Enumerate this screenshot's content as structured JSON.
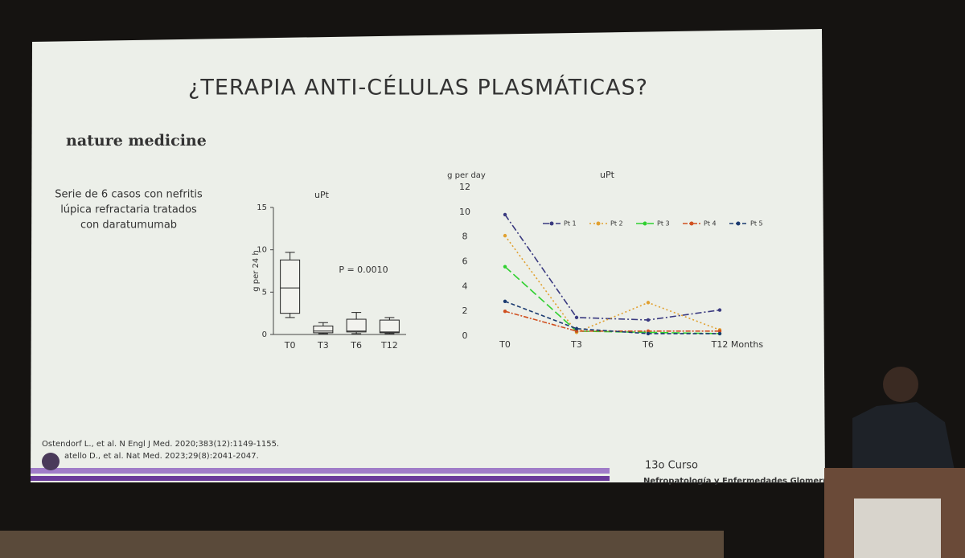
{
  "slide": {
    "title": "¿TERAPIA ANTI-CÉLULAS PLASMÁTICAS?",
    "journal": "nature medicine",
    "description": [
      "Serie de 6 casos con nefritis",
      "lúpica refractaria tratados",
      "con daratumumab"
    ],
    "references": [
      "Ostendorf L., et al. N Engl J Med. 2020;383(12):1149-1155.",
      "atello D., et al. Nat Med. 2023;29(8):2041-2047."
    ],
    "logo": [
      "13o Curso",
      "Nefropatología y Enfermedades Glomerulares"
    ]
  },
  "chart_data": [
    {
      "type": "box",
      "title": "uPt",
      "y_label": "g per 24 h",
      "annotation": "P = 0.0010",
      "categories": [
        "T0",
        "T3",
        "T6",
        "T12"
      ],
      "min": [
        2.0,
        0.1,
        0.1,
        0.1
      ],
      "q1": [
        2.5,
        0.2,
        0.3,
        0.2
      ],
      "median": [
        5.5,
        0.4,
        0.4,
        0.3
      ],
      "q3": [
        8.8,
        1.0,
        1.8,
        1.7
      ],
      "max": [
        9.7,
        1.4,
        2.6,
        2.0
      ],
      "color": "#222222",
      "ylim": [
        0,
        15
      ],
      "yticks": [
        0,
        5,
        10,
        15
      ]
    },
    {
      "type": "line",
      "title": "uPt",
      "y_label": "g per day",
      "x_label": "Months",
      "categories": [
        "T0",
        "T3",
        "T6",
        "T12"
      ],
      "series": [
        {
          "name": "Pt 1",
          "color": "#3a3a80",
          "values": [
            9.8,
            1.5,
            1.3,
            2.1
          ]
        },
        {
          "name": "Pt 2",
          "color": "#e0a030",
          "values": [
            8.1,
            0.3,
            2.7,
            0.5
          ]
        },
        {
          "name": "Pt 3",
          "color": "#30d030",
          "values": [
            5.6,
            0.4,
            0.3,
            0.2
          ]
        },
        {
          "name": "Pt 4",
          "color": "#d05020",
          "values": [
            2.0,
            0.4,
            0.4,
            0.4
          ]
        },
        {
          "name": "Pt 5",
          "color": "#1a3a70",
          "values": [
            2.8,
            0.6,
            0.2,
            0.2
          ]
        }
      ],
      "ylim": [
        0,
        12
      ],
      "yticks": [
        0,
        2,
        4,
        6,
        8,
        10,
        12
      ]
    }
  ]
}
